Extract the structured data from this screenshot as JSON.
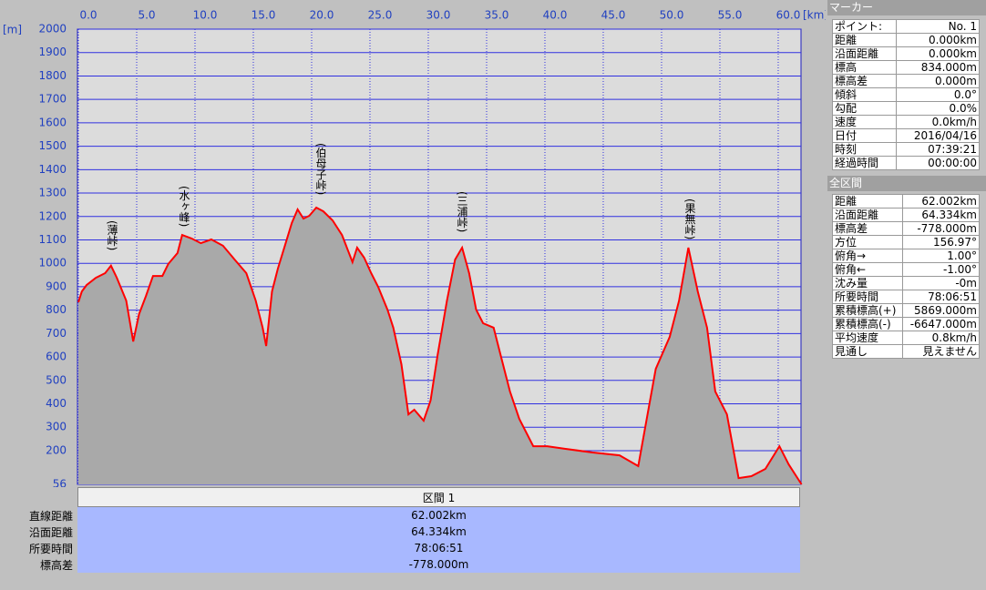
{
  "chart_data": {
    "type": "line",
    "x_unit": "[km]",
    "y_unit": "[m]",
    "annotations": [
      "(薄峠)",
      "(水ヶ峰)",
      "(伯母子峠)",
      "(三浦峠)",
      "(果無峠)"
    ],
    "xlim": [
      0,
      62.002
    ],
    "ylim": [
      56,
      2000
    ],
    "xticks": [
      {
        "value": 0,
        "label": "0.0"
      },
      {
        "value": 5,
        "label": "5.0"
      },
      {
        "value": 10,
        "label": "10.0"
      },
      {
        "value": 15,
        "label": "15.0"
      },
      {
        "value": 20,
        "label": "20.0"
      },
      {
        "value": 25,
        "label": "25.0"
      },
      {
        "value": 30,
        "label": "30.0"
      },
      {
        "value": 35,
        "label": "35.0"
      },
      {
        "value": 40,
        "label": "40.0"
      },
      {
        "value": 45,
        "label": "45.0"
      },
      {
        "value": 50,
        "label": "50.0"
      },
      {
        "value": 55,
        "label": "55.0"
      },
      {
        "value": 60,
        "label": "60.0"
      }
    ],
    "yticks": [
      56,
      200,
      300,
      400,
      500,
      600,
      700,
      800,
      900,
      1000,
      1100,
      1200,
      1300,
      1400,
      1500,
      1600,
      1700,
      1800,
      1900,
      2000
    ],
    "grid": true,
    "color": "#ff0000",
    "x": [
      0,
      0.3,
      0.7,
      1.5,
      2.3,
      2.8,
      3.3,
      4.1,
      4.7,
      5.2,
      5.8,
      6.4,
      7.2,
      7.7,
      8.5,
      8.9,
      9.7,
      10.5,
      11.4,
      12.4,
      13.4,
      14.4,
      15.2,
      15.8,
      16.1,
      16.6,
      17.1,
      17.7,
      18.3,
      18.8,
      19.3,
      19.8,
      20.4,
      21.0,
      21.8,
      22.6,
      23.5,
      23.9,
      24.5,
      25.1,
      25.7,
      26.5,
      27.0,
      27.7,
      28.3,
      28.8,
      29.6,
      30.2,
      30.8,
      31.6,
      32.3,
      32.9,
      33.5,
      34.1,
      34.7,
      35.6,
      36.3,
      37.0,
      37.8,
      39.0,
      40.2,
      41.7,
      44.1,
      46.4,
      48.0,
      48.8,
      49.5,
      50.7,
      51.5,
      52.3,
      53.1,
      53.9,
      54.6,
      55.6,
      56.6,
      57.7,
      58.9,
      60.1,
      60.9,
      62.0
    ],
    "values": [
      834,
      880,
      907,
      938,
      958,
      990,
      938,
      841,
      666,
      783,
      861,
      946,
      946,
      997,
      1044,
      1121,
      1106,
      1086,
      1102,
      1075,
      1016,
      958,
      841,
      725,
      647,
      880,
      977,
      1075,
      1172,
      1230,
      1191,
      1203,
      1238,
      1222,
      1183,
      1121,
      1005,
      1067,
      1024,
      958,
      900,
      802,
      725,
      569,
      355,
      375,
      328,
      414,
      608,
      841,
      1016,
      1067,
      958,
      802,
      744,
      725,
      589,
      453,
      336,
      219,
      219,
      208,
      192,
      180,
      134,
      355,
      549,
      686,
      841,
      1067,
      880,
      725,
      453,
      355,
      83,
      91,
      122,
      219,
      141,
      56
    ]
  },
  "marker": {
    "title": "マーカー",
    "rows": [
      [
        "ポイント:",
        "No. 1"
      ],
      [
        "距離",
        "0.000km"
      ],
      [
        "沿面距離",
        "0.000km"
      ],
      [
        "標高",
        "834.000m"
      ],
      [
        "標高差",
        "0.000m"
      ],
      [
        "傾斜",
        "0.0°"
      ],
      [
        "勾配",
        "0.0%"
      ],
      [
        "速度",
        "0.0km/h"
      ],
      [
        "日付",
        "2016/04/16"
      ],
      [
        "時刻",
        "07:39:21"
      ],
      [
        "経過時間",
        "00:00:00"
      ]
    ]
  },
  "total": {
    "title": "全区間",
    "rows": [
      [
        "距離",
        "62.002km"
      ],
      [
        "沿面距離",
        "64.334km"
      ],
      [
        "標高差",
        "-778.000m"
      ],
      [
        "方位",
        "156.97°"
      ],
      [
        "俯角→",
        "1.00°"
      ],
      [
        "俯角←",
        "-1.00°"
      ],
      [
        "沈み量",
        "-0m"
      ],
      [
        "所要時間",
        "78:06:51"
      ],
      [
        "累積標高(+)",
        "5869.000m"
      ],
      [
        "累積標高(-)",
        "-6647.000m"
      ],
      [
        "平均速度",
        "0.8km/h"
      ],
      [
        "見通し",
        "見えません"
      ]
    ]
  },
  "section": {
    "title": "区間 1",
    "labels": [
      "直線距離",
      "沿面距離",
      "所要時間",
      "標高差"
    ],
    "values": [
      "62.002km",
      "64.334km",
      "78:06:51",
      "-778.000m"
    ]
  }
}
